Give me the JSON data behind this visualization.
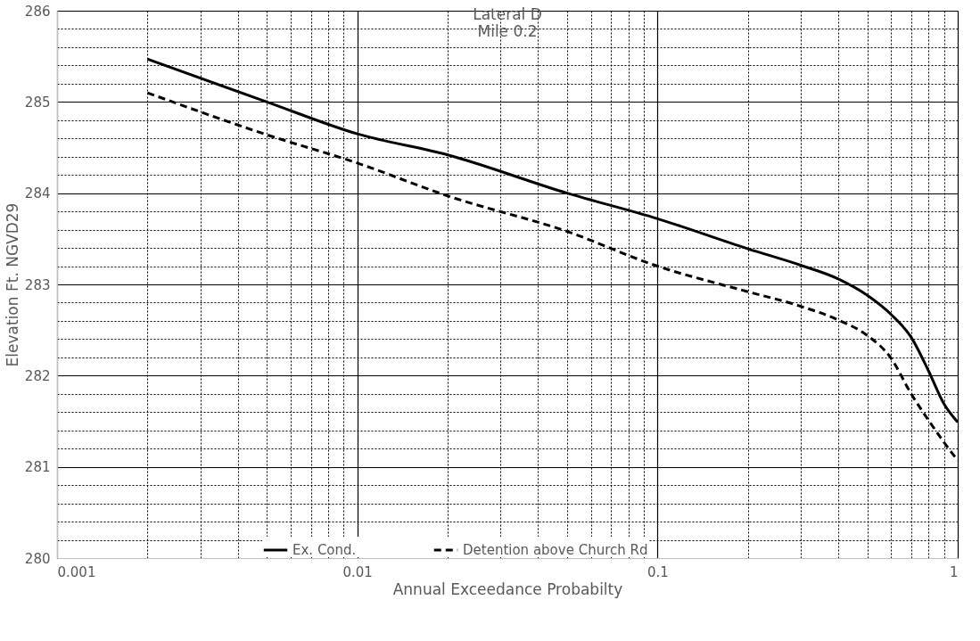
{
  "chart_data": {
    "type": "line",
    "title": "Lateral D",
    "subtitle": "Mile 0.2",
    "xlabel": "Annual Exceedance Probabilty",
    "ylabel": "Elevation Ft. NGVD29",
    "log": "x",
    "grid": true,
    "legend": "bottom",
    "xlim": [
      0.001,
      1
    ],
    "ylim": [
      280,
      286
    ],
    "xticks": [
      0.001,
      {
        "value": 0.002,
        "label": null
      },
      {
        "value": 0.003,
        "label": null
      },
      {
        "value": 0.004,
        "label": null
      },
      {
        "value": 0.005,
        "label": null
      },
      {
        "value": 0.006,
        "label": null
      },
      {
        "value": 0.007,
        "label": null
      },
      {
        "value": 0.008,
        "label": null
      },
      {
        "value": 0.009,
        "label": null
      },
      0.01,
      {
        "value": 0.02,
        "label": null
      },
      {
        "value": 0.03,
        "label": null
      },
      {
        "value": 0.04,
        "label": null
      },
      {
        "value": 0.05,
        "label": null
      },
      {
        "value": 0.06,
        "label": null
      },
      {
        "value": 0.07,
        "label": null
      },
      {
        "value": 0.08,
        "label": null
      },
      {
        "value": 0.09,
        "label": null
      },
      0.1,
      {
        "value": 0.2,
        "label": null
      },
      {
        "value": 0.3,
        "label": null
      },
      {
        "value": 0.4,
        "label": null
      },
      {
        "value": 0.5,
        "label": null
      },
      {
        "value": 0.6,
        "label": null
      },
      {
        "value": 0.7,
        "label": null
      },
      {
        "value": 0.8,
        "label": null
      },
      {
        "value": 0.9,
        "label": null
      },
      1
    ],
    "yticks": [
      280,
      {
        "value": 280.2,
        "label": null
      },
      {
        "value": 280.4,
        "label": null
      },
      {
        "value": 280.6,
        "label": null
      },
      {
        "value": 280.8,
        "label": null
      },
      281,
      {
        "value": 281.2,
        "label": null
      },
      {
        "value": 281.4,
        "label": null
      },
      {
        "value": 281.6,
        "label": null
      },
      {
        "value": 281.8,
        "label": null
      },
      282,
      {
        "value": 282.2,
        "label": null
      },
      {
        "value": 282.4,
        "label": null
      },
      {
        "value": 282.6,
        "label": null
      },
      {
        "value": 282.8,
        "label": null
      },
      283,
      {
        "value": 283.2,
        "label": null
      },
      {
        "value": 283.4,
        "label": null
      },
      {
        "value": 283.6,
        "label": null
      },
      {
        "value": 283.8,
        "label": null
      },
      284,
      {
        "value": 284.2,
        "label": null
      },
      {
        "value": 284.4,
        "label": null
      },
      {
        "value": 284.6,
        "label": null
      },
      {
        "value": 284.8,
        "label": null
      },
      285,
      {
        "value": 285.2,
        "label": null
      },
      {
        "value": 285.4,
        "label": null
      },
      {
        "value": 285.6,
        "label": null
      },
      {
        "value": 285.8,
        "label": null
      },
      286
    ],
    "x": [
      0.002,
      0.005,
      0.01,
      0.02,
      0.05,
      0.1,
      0.2,
      0.3,
      0.4,
      0.5,
      0.6,
      0.7,
      0.8,
      0.9,
      1
    ],
    "series": [
      {
        "name": "Ex. Cond.",
        "color": "#000000",
        "line_style": "solid",
        "values": [
          285.47,
          285.0,
          284.65,
          284.42,
          284.0,
          283.72,
          283.39,
          283.21,
          283.06,
          282.88,
          282.67,
          282.42,
          282.05,
          281.69,
          281.49
        ]
      },
      {
        "name": "Detention above Church Rd",
        "color": "#000000",
        "line_style": "dashed",
        "values": [
          285.1,
          284.64,
          284.33,
          283.97,
          283.58,
          283.2,
          282.92,
          282.76,
          282.61,
          282.44,
          282.19,
          281.8,
          281.51,
          281.27,
          281.07
        ]
      }
    ]
  }
}
